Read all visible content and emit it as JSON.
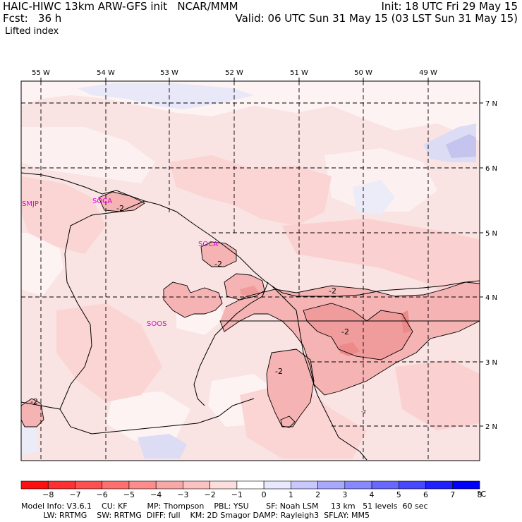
{
  "header": {
    "model_title": "HAIC-HIWC 13km ARW-GFS init   NCAR/MMM",
    "forecast": "Fcst:   36 h",
    "field": "Lifted index",
    "init": "Init: 18 UTC Fri 29 May 15",
    "valid": "Valid: 06 UTC Sun 31 May 15 (03 LST Sun 31 May 15)"
  },
  "map": {
    "lon_labels": [
      "55 W",
      "54 W",
      "53 W",
      "52 W",
      "51 W",
      "50 W",
      "49 W"
    ],
    "lat_labels": [
      "7 N",
      "6 N",
      "5 N",
      "4 N",
      "3 N",
      "2 N"
    ],
    "stations": [
      "SMJP",
      "SOCA",
      "SOCA",
      "SOOS"
    ],
    "contour_labels": [
      "-2",
      "-2",
      "-2",
      "-2",
      "-2",
      "-2",
      "-2"
    ],
    "colors": {
      "base": "#f9e3e3",
      "light": "#fbd0d0",
      "mid": "#f4a6a6",
      "dark": "#ee8f8f",
      "near_zero": "#ffffff",
      "pos_light": "#e6e6f8",
      "pos_mid": "#c8c8f0"
    }
  },
  "colorbar": {
    "colors": [
      "#ff1010",
      "#ff3030",
      "#ff5050",
      "#ff6f6f",
      "#ff8c8c",
      "#f9a7a7",
      "#fcc2c2",
      "#fddede",
      "#ffffff",
      "#e8e8ff",
      "#c8c8ff",
      "#a8a8ff",
      "#8888ff",
      "#6868ff",
      "#4848ff",
      "#2020ff",
      "#0000ff"
    ],
    "labels": [
      "−8",
      "−7",
      "−6",
      "−5",
      "−4",
      "−3",
      "−2",
      "−1",
      "0",
      "1",
      "2",
      "3",
      "4",
      "5",
      "6",
      "7",
      "8"
    ],
    "unit": "°C"
  },
  "footer": {
    "line1": "Model Info: V3.6.1    CU: KF        MP: Thompson    PBL: YSU       SF: Noah LSM     13 km   51 levels  60 sec",
    "line2": "         LW: RRTMG    SW: RRTMG  DIFF: full    KM: 2D Smagor DAMP: Rayleigh3  SFLAY: MM5"
  }
}
